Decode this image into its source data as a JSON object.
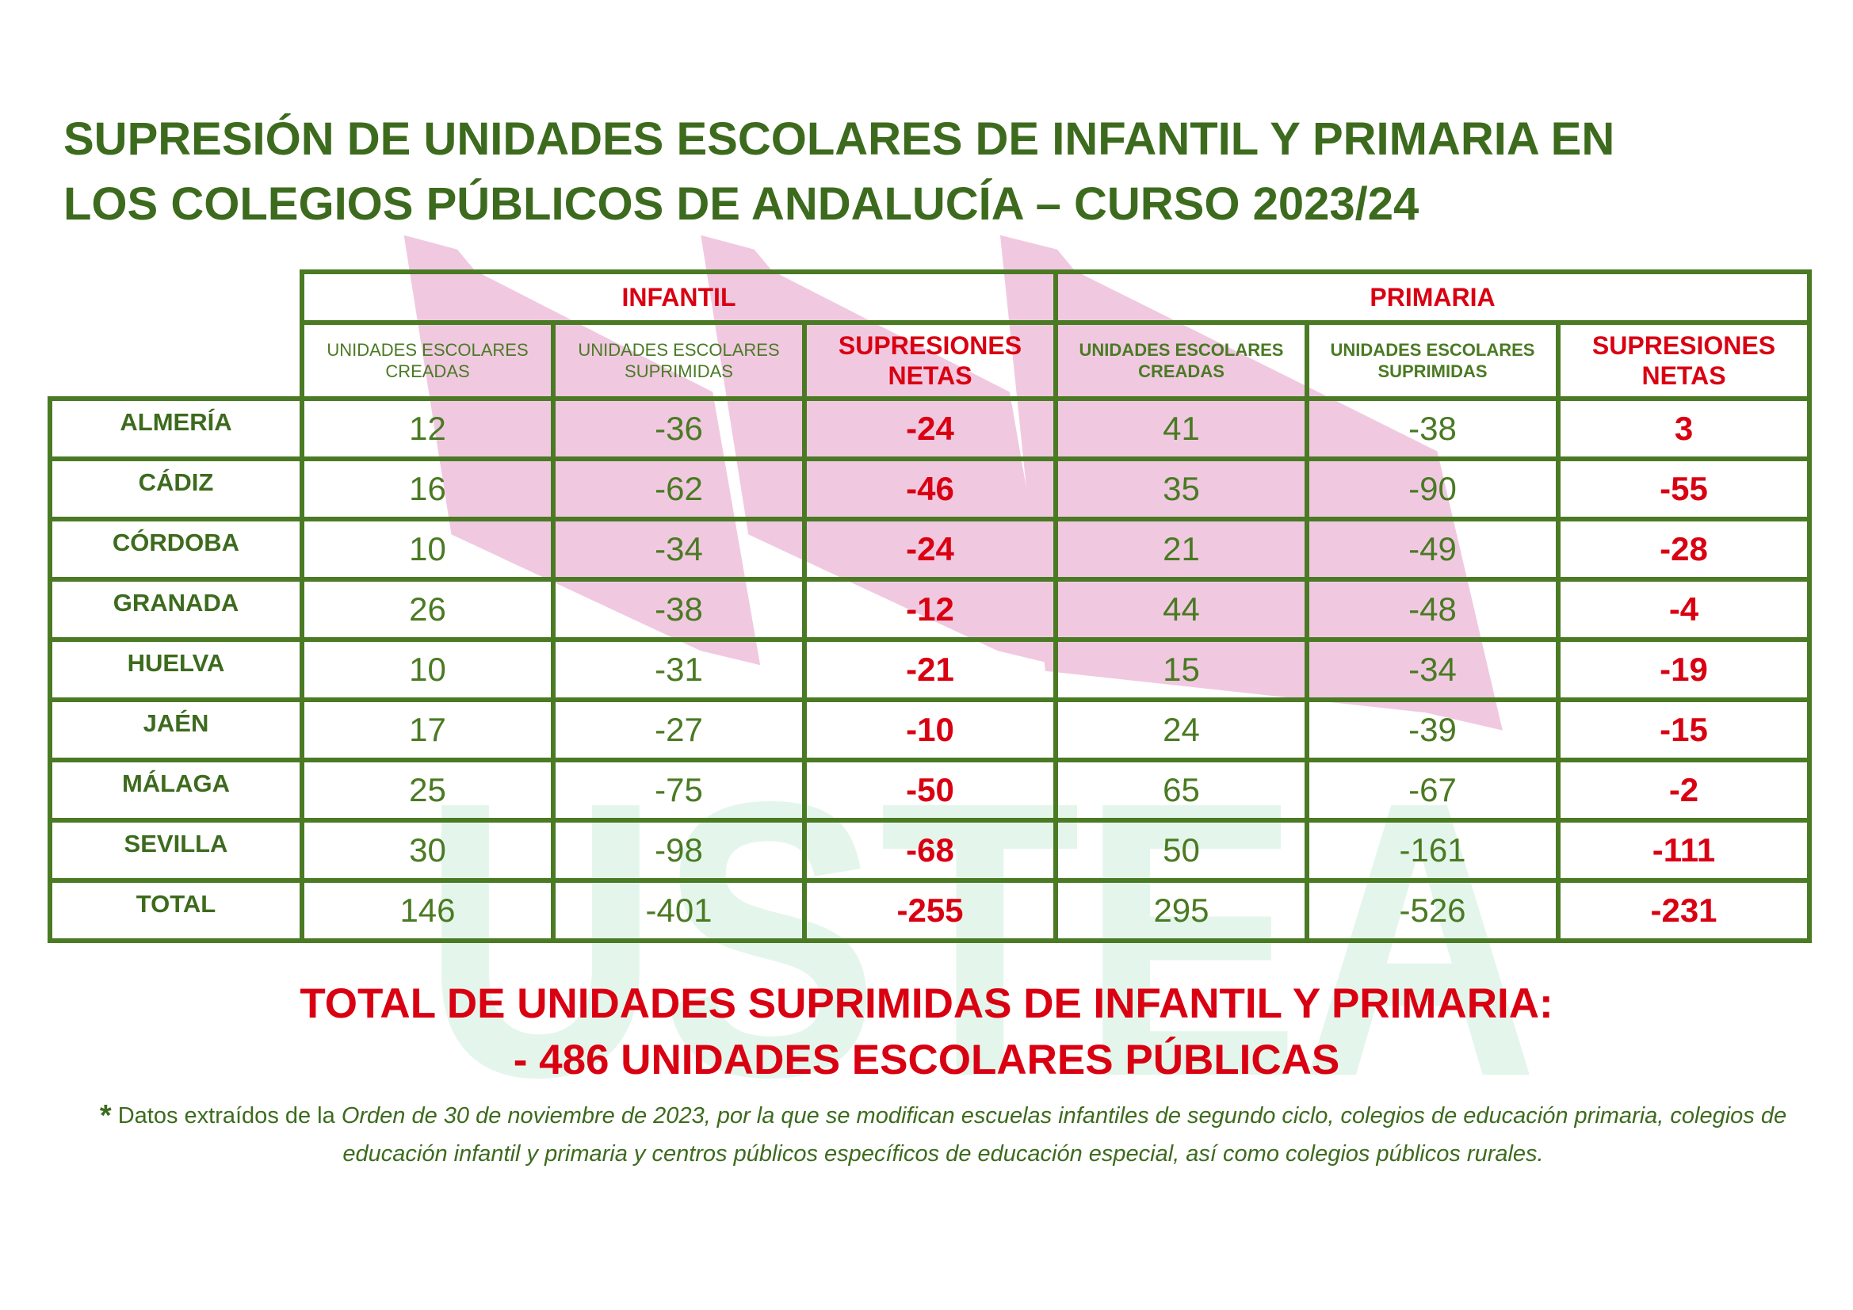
{
  "title": {
    "line1": "SUPRESIÓN DE UNIDADES ESCOLARES DE INFANTIL Y PRIMARIA EN",
    "line2": "LOS COLEGIOS PÚBLICOS DE ANDALUCÍA – CURSO 2023/24"
  },
  "table": {
    "groups": [
      "INFANTIL",
      "PRIMARIA"
    ],
    "subheaders": [
      {
        "line1": "UNIDADES ESCOLARES",
        "line2": "CREADAS"
      },
      {
        "line1": "UNIDADES ESCOLARES",
        "line2": "SUPRIMIDAS"
      },
      {
        "line1": "SUPRESIONES",
        "line2": "NETAS"
      },
      {
        "line1": "UNIDADES ESCOLARES",
        "line2": "CREADAS"
      },
      {
        "line1": "UNIDADES ESCOLARES",
        "line2": "SUPRIMIDAS"
      },
      {
        "line1": "SUPRESIONES",
        "line2": "NETAS"
      }
    ],
    "rows": [
      {
        "label": "ALMERÍA",
        "values": [
          "12",
          "-36",
          "-24",
          "41",
          "-38",
          "3"
        ]
      },
      {
        "label": "CÁDIZ",
        "values": [
          "16",
          "-62",
          "-46",
          "35",
          "-90",
          "-55"
        ]
      },
      {
        "label": "CÓRDOBA",
        "values": [
          "10",
          "-34",
          "-24",
          "21",
          "-49",
          "-28"
        ]
      },
      {
        "label": "GRANADA",
        "values": [
          "26",
          "-38",
          "-12",
          "44",
          "-48",
          "-4"
        ]
      },
      {
        "label": "HUELVA",
        "values": [
          "10",
          "-31",
          "-21",
          "15",
          "-34",
          "-19"
        ]
      },
      {
        "label": "JAÉN",
        "values": [
          "17",
          "-27",
          "-10",
          "24",
          "-39",
          "-15"
        ]
      },
      {
        "label": "MÁLAGA",
        "values": [
          "25",
          "-75",
          "-50",
          "65",
          "-67",
          "-2"
        ]
      },
      {
        "label": "SEVILLA",
        "values": [
          "30",
          "-98",
          "-68",
          "50",
          "-161",
          "-111"
        ]
      },
      {
        "label": "TOTAL",
        "values": [
          "146",
          "-401",
          "-255",
          "295",
          "-526",
          "-231"
        ]
      }
    ]
  },
  "summary": {
    "line1": "TOTAL DE UNIDADES SUPRIMIDAS DE INFANTIL Y PRIMARIA:",
    "line2": "- 486 UNIDADES ESCOLARES PÚBLICAS"
  },
  "footnote": {
    "star": "*",
    "prefix": " Datos extraídos de la ",
    "italic": "Orden de 30 de noviembre de 2023, por la que se modifican escuelas infantiles de segundo ciclo, colegios de educación primaria, colegios de educación infantil y primaria y centros públicos específicos de educación especial, así como colegios públicos rurales."
  },
  "watermark": {
    "text": "USTEA"
  },
  "colors": {
    "green": "#3d6b1e",
    "border": "#4a7a23",
    "red": "#d90012",
    "pink": "#f0c9e1",
    "mint": "#e4f6ec"
  }
}
